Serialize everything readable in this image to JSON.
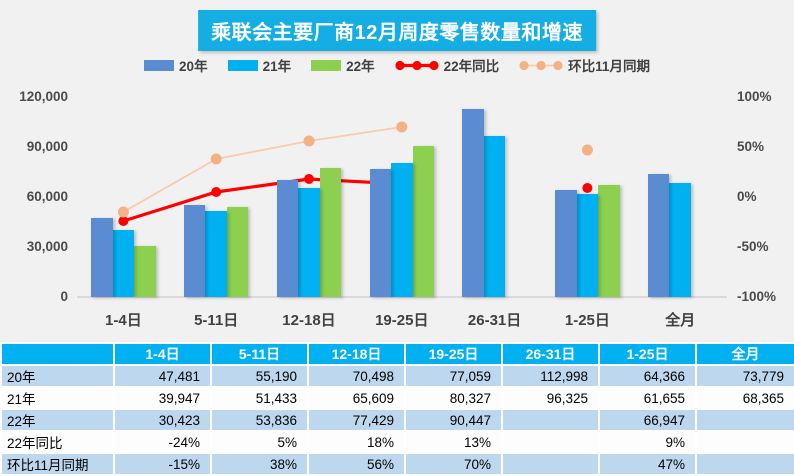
{
  "title": "乘联会主要厂商12月周度零售数量和增速",
  "colors": {
    "page_bg": "#F1F1F2",
    "title_bg": "#14AEE4",
    "table_header_bg": "#00B0F0",
    "table_band_blue": "#BDD7EE",
    "table_band_white": "#FDFDFD",
    "bar_2020": "#5B8BD1",
    "bar_2021": "#00B0F0",
    "bar_2022": "#8DD050",
    "line_yoy": "#FF0000",
    "line_mom": "#F8CBAD",
    "line_mom_marker": "#F4B183",
    "axis_text": "#404040"
  },
  "chart_data": {
    "type": "bar+line",
    "title": "乘联会主要厂商12月周度零售数量和增速",
    "categories": [
      "1-4日",
      "5-11日",
      "12-18日",
      "19-25日",
      "26-31日",
      "1-25日",
      "全月"
    ],
    "series": [
      {
        "key": "y2020",
        "name": "20年",
        "type": "bar",
        "color": "#5B8BD1",
        "values": [
          47481,
          55190,
          70498,
          77059,
          112998,
          64366,
          73779
        ]
      },
      {
        "key": "y2021",
        "name": "21年",
        "type": "bar",
        "color": "#00B0F0",
        "values": [
          39947,
          51433,
          65609,
          80327,
          96325,
          61655,
          68365
        ]
      },
      {
        "key": "y2022",
        "name": "22年",
        "type": "bar",
        "color": "#8DD050",
        "values": [
          30423,
          53836,
          77429,
          90447,
          null,
          66947,
          null
        ]
      },
      {
        "key": "yoy",
        "name": "22年同比",
        "type": "line",
        "axis": "right",
        "color": "#FF0000",
        "marker_color": "#FF0000",
        "line_width": 3.2,
        "marker_r": 5,
        "values": [
          -24,
          5,
          18,
          13,
          null,
          9,
          null
        ]
      },
      {
        "key": "mom",
        "name": "环比11月同期",
        "type": "line",
        "axis": "right",
        "color": "#F8CBAD",
        "marker_color": "#F4B183",
        "line_width": 1.8,
        "marker_r": 5.5,
        "values": [
          -15,
          38,
          56,
          70,
          null,
          47,
          null
        ]
      }
    ],
    "left_axis": {
      "ticks": [
        "0",
        "30,000",
        "60,000",
        "90,000",
        "120,000"
      ],
      "min": 0,
      "max": 120000,
      "grid": false
    },
    "right_axis": {
      "ticks": [
        "-100%",
        "-50%",
        "0%",
        "50%",
        "100%"
      ],
      "min": -100,
      "max": 100,
      "grid": false
    },
    "legend_position": "top"
  },
  "table": {
    "headers": [
      "",
      "1-4日",
      "5-11日",
      "12-18日",
      "19-25日",
      "26-31日",
      "1-25日",
      "全月"
    ],
    "rows": [
      {
        "label": "20年",
        "cells": [
          "47,481",
          "55,190",
          "70,498",
          "77,059",
          "112,998",
          "64,366",
          "73,779"
        ]
      },
      {
        "label": "21年",
        "cells": [
          "39,947",
          "51,433",
          "65,609",
          "80,327",
          "96,325",
          "61,655",
          "68,365"
        ]
      },
      {
        "label": "22年",
        "cells": [
          "30,423",
          "53,836",
          "77,429",
          "90,447",
          "",
          "66,947",
          ""
        ]
      },
      {
        "label": "22年同比",
        "cells": [
          "-24%",
          "5%",
          "18%",
          "13%",
          "",
          "9%",
          ""
        ]
      },
      {
        "label": "环比11月同期",
        "cells": [
          "-15%",
          "38%",
          "56%",
          "70%",
          "",
          "47%",
          ""
        ]
      }
    ]
  }
}
